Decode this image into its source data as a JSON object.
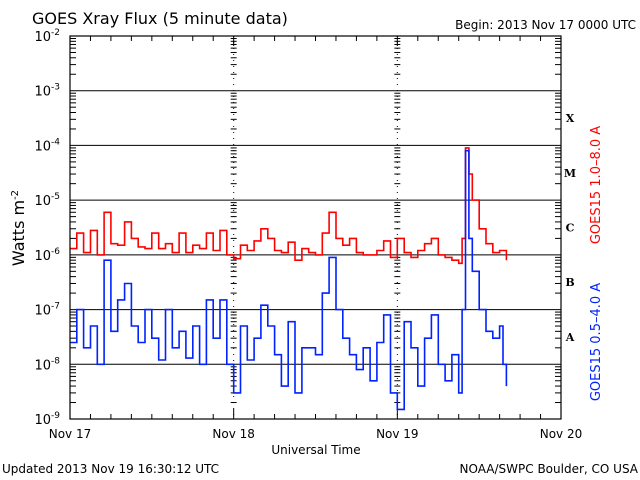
{
  "chart_data": {
    "type": "line",
    "title": "GOES Xray Flux (5 minute data)",
    "subtitle": "Begin:  2013 Nov 17 0000 UTC",
    "xlabel": "Universal Time",
    "ylabel": "Watts m",
    "ylabel_exp": "-2",
    "yscale": "log",
    "ylim": [
      1e-09,
      0.01
    ],
    "xlim_hours": [
      0,
      72
    ],
    "x_unit": "hours since 2013 Nov 17 0000 UTC",
    "x_ticks": [
      {
        "hour": 0,
        "label": "Nov 17"
      },
      {
        "hour": 24,
        "label": "Nov 18"
      },
      {
        "hour": 48,
        "label": "Nov 19"
      },
      {
        "hour": 72,
        "label": "Nov 20"
      }
    ],
    "y_ticks": [
      {
        "base": "10",
        "exp": "-2",
        "value": 0.01
      },
      {
        "base": "10",
        "exp": "-3",
        "value": 0.001
      },
      {
        "base": "10",
        "exp": "-4",
        "value": 0.0001
      },
      {
        "base": "10",
        "exp": "-5",
        "value": 1e-05
      },
      {
        "base": "10",
        "exp": "-6",
        "value": 1e-06
      },
      {
        "base": "10",
        "exp": "-7",
        "value": 1e-07
      },
      {
        "base": "10",
        "exp": "-8",
        "value": 1e-08
      },
      {
        "base": "10",
        "exp": "-9",
        "value": 1e-09
      }
    ],
    "grid": true,
    "flare_classes": [
      {
        "label": "X",
        "value": 0.000316
      },
      {
        "label": "M",
        "value": 3.16e-05
      },
      {
        "label": "C",
        "value": 3.16e-06
      },
      {
        "label": "B",
        "value": 3.16e-07
      },
      {
        "label": "A",
        "value": 3.16e-08
      }
    ],
    "series": [
      {
        "name": "GOES15 1.0–8.0 A",
        "color": "#ff0000",
        "x": [
          0,
          1,
          2,
          3,
          4,
          5,
          6,
          7,
          8,
          9,
          10,
          11,
          12,
          13,
          14,
          15,
          16,
          17,
          18,
          19,
          20,
          21,
          22,
          23,
          24,
          25,
          26,
          27,
          28,
          29,
          30,
          31,
          32,
          33,
          34,
          35,
          36,
          37,
          38,
          39,
          40,
          41,
          42,
          43,
          44,
          45,
          46,
          47,
          48,
          49,
          50,
          51,
          52,
          53,
          54,
          55,
          56,
          57,
          57.5,
          58,
          58.5,
          59,
          60,
          61,
          62,
          63,
          64
        ],
        "y": [
          1.3e-06,
          2.5e-06,
          1.1e-06,
          2.8e-06,
          1e-06,
          6e-06,
          1.6e-06,
          1.5e-06,
          4e-06,
          2e-06,
          1.4e-06,
          1.3e-06,
          2.5e-06,
          1.3e-06,
          1.6e-06,
          1.1e-06,
          2.5e-06,
          1.1e-06,
          1.5e-06,
          1.3e-06,
          2.5e-06,
          1.2e-06,
          2.8e-06,
          1e-06,
          8.5e-07,
          1.5e-06,
          1.2e-06,
          1.8e-06,
          3e-06,
          2e-06,
          1.2e-06,
          1.1e-06,
          1.7e-06,
          8e-07,
          1.3e-06,
          1.1e-06,
          1e-06,
          2.5e-06,
          6e-06,
          2e-06,
          1.5e-06,
          2e-06,
          1.1e-06,
          1e-06,
          1e-06,
          1.2e-06,
          1.8e-06,
          9e-07,
          2e-06,
          1.1e-06,
          9e-07,
          1.2e-06,
          1.6e-06,
          2e-06,
          1e-06,
          9e-07,
          8e-07,
          7e-07,
          2e-06,
          9e-05,
          3e-05,
          1e-05,
          3e-06,
          1.6e-06,
          1.1e-06,
          1.2e-06,
          8e-07
        ]
      },
      {
        "name": "GOES15 0.5–4.0 A",
        "color": "#0022ff",
        "x": [
          0,
          1,
          2,
          3,
          4,
          5,
          6,
          7,
          8,
          9,
          10,
          11,
          12,
          13,
          14,
          15,
          16,
          17,
          18,
          19,
          20,
          21,
          22,
          23,
          24,
          25,
          26,
          27,
          28,
          29,
          30,
          31,
          32,
          33,
          34,
          35,
          36,
          37,
          38,
          39,
          40,
          41,
          42,
          43,
          44,
          45,
          46,
          47,
          48,
          49,
          50,
          51,
          52,
          53,
          54,
          55,
          56,
          57,
          57.5,
          58,
          58.5,
          59,
          60,
          61,
          62,
          63,
          63.5,
          64
        ],
        "y": [
          2.5e-08,
          1e-07,
          2e-08,
          5e-08,
          1e-08,
          8e-07,
          4e-08,
          1.5e-07,
          3e-07,
          5e-08,
          2.5e-08,
          1e-07,
          3e-08,
          1.2e-08,
          1e-07,
          2e-08,
          4e-08,
          1.3e-08,
          5e-08,
          1e-08,
          1.5e-07,
          3e-08,
          1.5e-07,
          1e-08,
          3e-09,
          5e-08,
          1.2e-08,
          3e-08,
          1.2e-07,
          5e-08,
          1.5e-08,
          4e-09,
          6e-08,
          3e-09,
          2e-08,
          2e-08,
          1.5e-08,
          2e-07,
          9e-07,
          1e-07,
          3e-08,
          1.5e-08,
          8e-09,
          2e-08,
          5e-09,
          2.5e-08,
          8e-08,
          3e-09,
          1.5e-09,
          6e-08,
          2e-08,
          4e-09,
          3e-08,
          8e-08,
          1e-08,
          5e-09,
          1.5e-08,
          3e-09,
          1e-07,
          8e-05,
          2e-06,
          5e-07,
          1e-07,
          4e-08,
          3e-08,
          5e-08,
          1e-08,
          4e-09
        ]
      }
    ]
  },
  "footer": {
    "updated": "Updated 2013 Nov 19 16:30:12 UTC",
    "credit": "NOAA/SWPC Boulder, CO USA"
  }
}
